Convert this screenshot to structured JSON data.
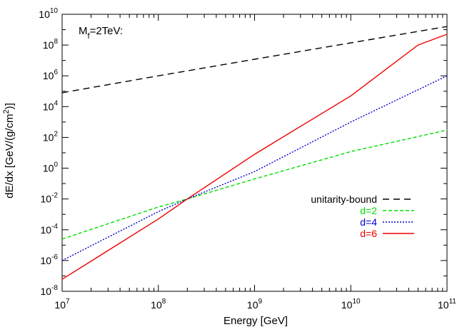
{
  "chart_data": {
    "type": "line",
    "x_scale": "log",
    "y_scale": "log",
    "xlim": [
      10000000.0,
      100000000000.0
    ],
    "ylim": [
      1e-08,
      10000000000.0
    ],
    "xlabel": "Energy [GeV]",
    "ylabel": {
      "prefix": "dE/dx [GeV/(g/cm",
      "sup": "2",
      "suffix": ")]"
    },
    "annotation": {
      "main": "M",
      "sub": "f",
      "rest": "=2TeV:"
    },
    "x_ticks": [
      {
        "value": 10000000.0,
        "base": "10",
        "exp": "7"
      },
      {
        "value": 100000000.0,
        "base": "10",
        "exp": "8"
      },
      {
        "value": 1000000000.0,
        "base": "10",
        "exp": "9"
      },
      {
        "value": 10000000000.0,
        "base": "10",
        "exp": "10"
      },
      {
        "value": 100000000000.0,
        "base": "10",
        "exp": "11"
      }
    ],
    "y_ticks": [
      {
        "value": 1e-08,
        "base": "10",
        "exp": "-8"
      },
      {
        "value": 1e-06,
        "base": "10",
        "exp": "-6"
      },
      {
        "value": 0.0001,
        "base": "10",
        "exp": "-4"
      },
      {
        "value": 0.01,
        "base": "10",
        "exp": "-2"
      },
      {
        "value": 1.0,
        "base": "10",
        "exp": "0"
      },
      {
        "value": 100.0,
        "base": "10",
        "exp": "2"
      },
      {
        "value": 10000.0,
        "base": "10",
        "exp": "4"
      },
      {
        "value": 1000000.0,
        "base": "10",
        "exp": "6"
      },
      {
        "value": 100000000.0,
        "base": "10",
        "exp": "8"
      },
      {
        "value": 10000000000.0,
        "base": "10",
        "exp": "10"
      }
    ],
    "grid": false,
    "legend_position": "right-middle",
    "series": [
      {
        "name": "unitarity-bound",
        "color": "#000000",
        "dash": "dashed",
        "x": [
          10000000.0,
          100000000.0,
          1000000000.0,
          10000000000.0,
          100000000000.0
        ],
        "y": [
          80000.0,
          1000000.0,
          12000000.0,
          140000000.0,
          1600000000.0
        ]
      },
      {
        "name": "d=2",
        "color": "#00dd00",
        "dash": "dashed-short",
        "x": [
          10000000.0,
          100000000.0,
          200000000.0,
          1000000000.0,
          10000000000.0,
          100000000000.0
        ],
        "y": [
          2.5e-05,
          0.003,
          0.01,
          0.2,
          12,
          300
        ]
      },
      {
        "name": "d=4",
        "color": "#0000cc",
        "dash": "dotted",
        "x": [
          10000000.0,
          100000000.0,
          200000000.0,
          1000000000.0,
          10000000000.0,
          100000000000.0
        ],
        "y": [
          1e-06,
          0.0015,
          0.01,
          0.6,
          1000,
          1000000.0
        ]
      },
      {
        "name": "d=6",
        "color": "#ee0000",
        "dash": "solid",
        "x": [
          10000000.0,
          100000000.0,
          200000000.0,
          1000000000.0,
          10000000000.0,
          50000000000.0,
          100000000000.0
        ],
        "y": [
          6e-08,
          0.0005,
          0.01,
          8,
          50000.0,
          100000000.0,
          500000000.0
        ]
      }
    ]
  }
}
